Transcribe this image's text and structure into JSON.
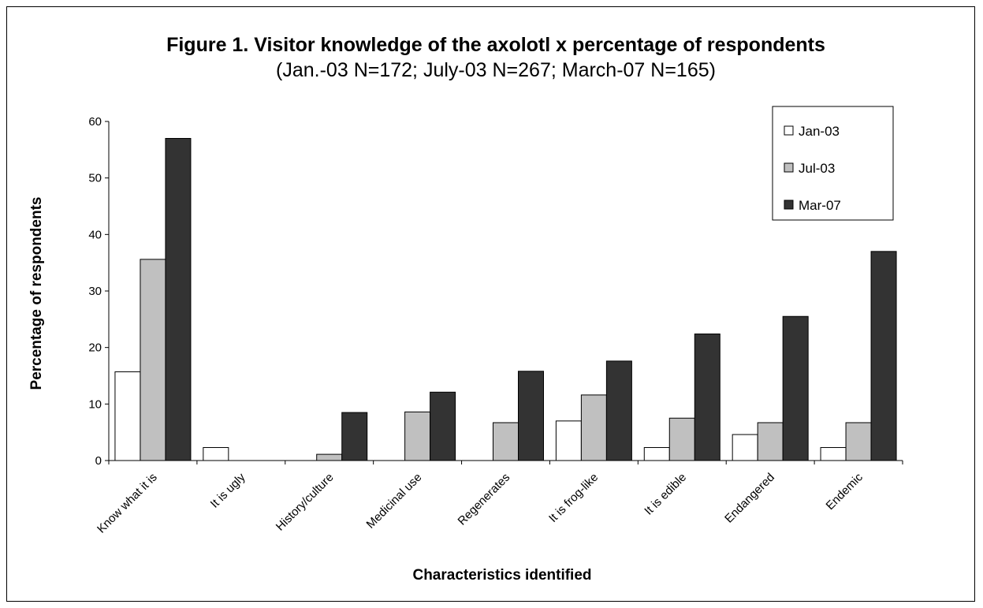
{
  "chart_data": {
    "type": "bar",
    "title": "Figure 1. Visitor knowledge of the axolotl x percentage of respondents",
    "subtitle": "(Jan.-03 N=172; July-03 N=267; March-07 N=165)",
    "xlabel": "Characteristics identified",
    "ylabel": "Percentage of respondents",
    "ylim": [
      0,
      60
    ],
    "yticks": [
      0,
      10,
      20,
      30,
      40,
      50,
      60
    ],
    "grid": false,
    "legend_position": "top-right",
    "categories": [
      "Know what it is",
      "It is ugly",
      "History/culture",
      "Medicinal use",
      "Regenerates",
      "It is frog-like",
      "It is edible",
      "Endangered",
      "Endemic"
    ],
    "series": [
      {
        "name": "Jan-03",
        "color": "#ffffff",
        "values": [
          15.7,
          2.3,
          0,
          0,
          0,
          7.0,
          2.3,
          4.6,
          2.3
        ]
      },
      {
        "name": "Jul-03",
        "color": "#c0c0c0",
        "values": [
          35.6,
          0,
          1.1,
          8.6,
          6.7,
          11.6,
          7.5,
          6.7,
          6.7
        ]
      },
      {
        "name": "Mar-07",
        "color": "#333333",
        "values": [
          57.0,
          0,
          8.5,
          12.1,
          15.8,
          17.6,
          22.4,
          25.5,
          37.0
        ]
      }
    ]
  }
}
